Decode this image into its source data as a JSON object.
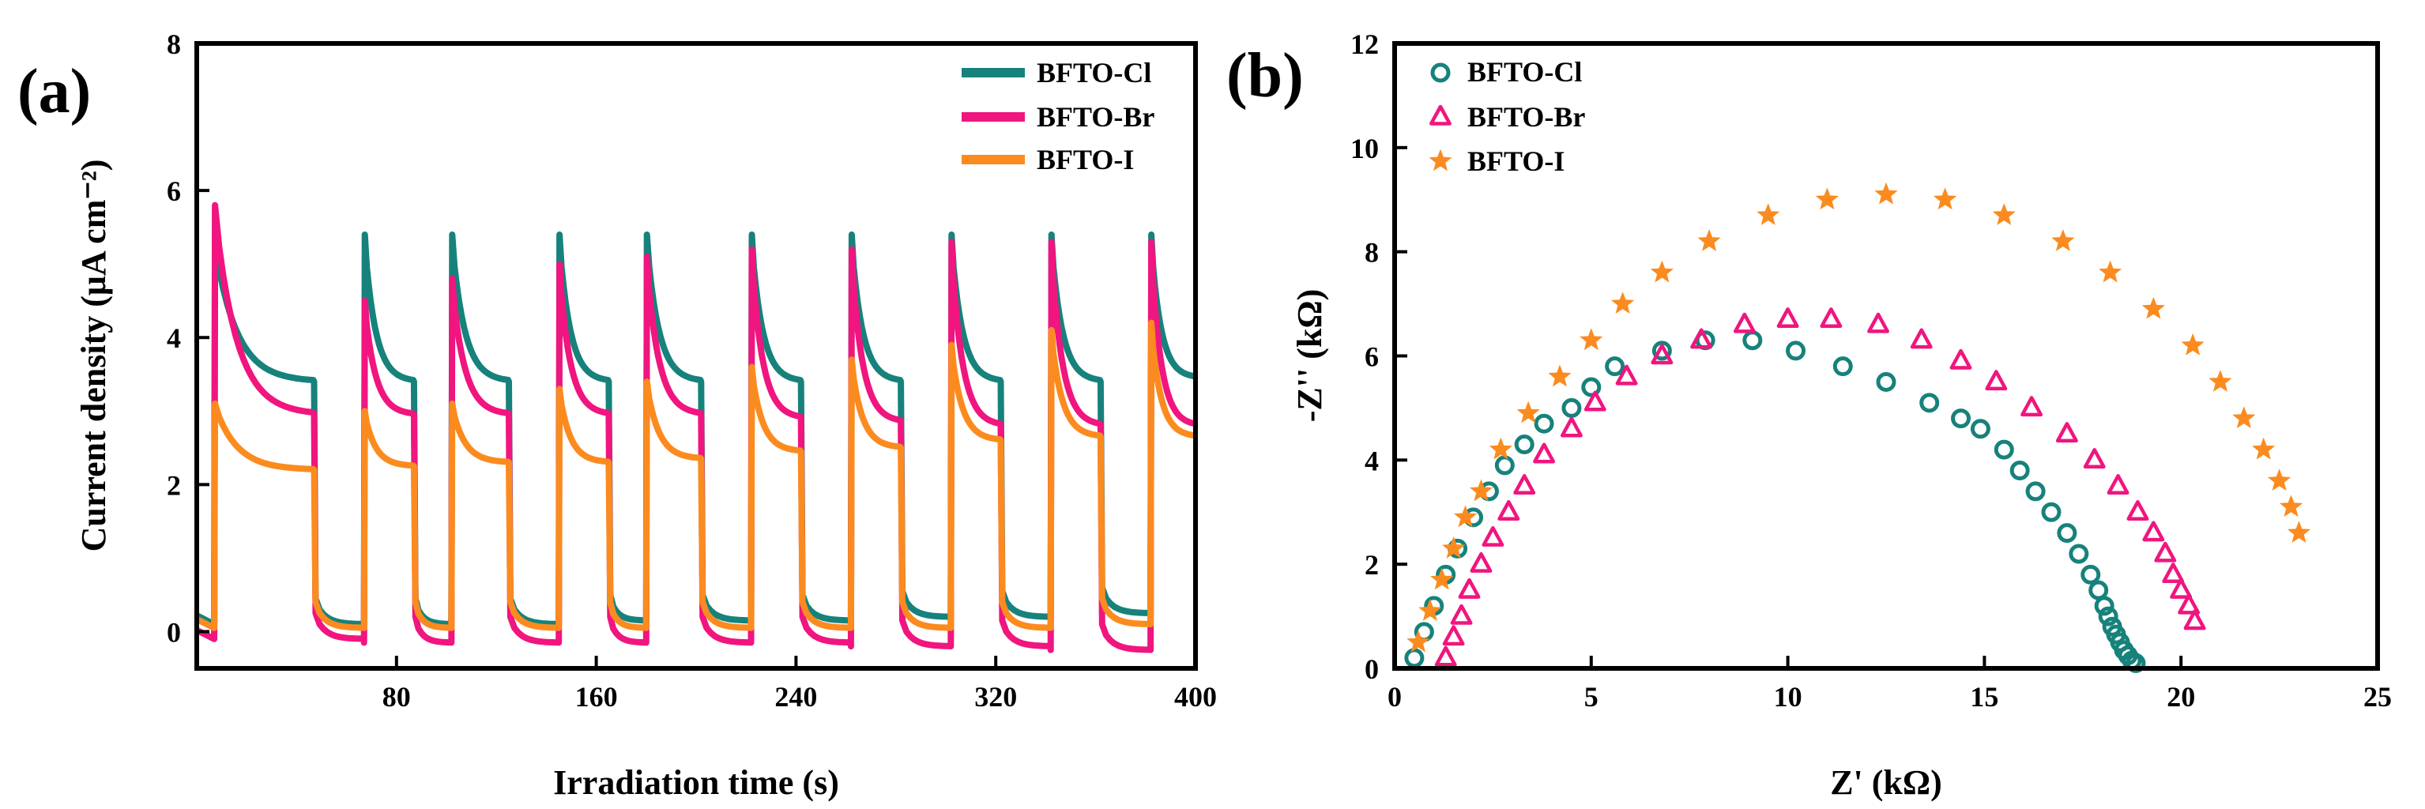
{
  "panel_a_label": "(a)",
  "panel_b_label": "(b)",
  "chart_data": [
    {
      "type": "line",
      "title": "",
      "xlabel": "Irradiation time (s)",
      "ylabel": "Current density (μA cm⁻²)",
      "xlim": [
        0,
        400
      ],
      "ylim": [
        -0.5,
        8
      ],
      "xticks": [
        80,
        160,
        240,
        320,
        400
      ],
      "yticks": [
        0,
        2,
        4,
        6,
        8
      ],
      "light_on_times": [
        7,
        67,
        102,
        145,
        180,
        222,
        262,
        302,
        342,
        382
      ],
      "light_off_times": [
        47,
        87,
        125,
        165,
        202,
        242,
        282,
        322,
        362,
        400
      ],
      "legend_position": "top-right",
      "series": [
        {
          "name": "BFTO-Cl",
          "color": "#16827b",
          "on_peak": [
            5.3,
            5.4,
            5.4,
            5.4,
            5.4,
            5.4,
            5.4,
            5.4,
            5.4,
            5.4
          ],
          "on_plateau": [
            3.4,
            3.4,
            3.4,
            3.4,
            3.4,
            3.4,
            3.4,
            3.4,
            3.4,
            3.45
          ],
          "off_level": [
            0.1,
            0.1,
            0.1,
            0.15,
            0.15,
            0.15,
            0.2,
            0.2,
            0.25,
            0.25
          ]
        },
        {
          "name": "BFTO-Br",
          "color": "#f0157f",
          "on_peak": [
            5.8,
            4.5,
            4.8,
            5.0,
            5.1,
            5.2,
            5.2,
            5.3,
            5.3,
            5.3
          ],
          "on_plateau": [
            2.95,
            2.95,
            2.95,
            2.95,
            2.95,
            2.9,
            2.85,
            2.8,
            2.8,
            2.8
          ],
          "off_level": [
            -0.1,
            -0.15,
            -0.15,
            -0.15,
            -0.15,
            -0.15,
            -0.2,
            -0.2,
            -0.25,
            -0.25
          ]
        },
        {
          "name": "BFTO-I",
          "color": "#fb8b1f",
          "on_peak": [
            3.1,
            3.0,
            3.1,
            3.3,
            3.4,
            3.6,
            3.7,
            3.9,
            4.1,
            4.2
          ],
          "on_plateau": [
            2.2,
            2.25,
            2.3,
            2.3,
            2.35,
            2.45,
            2.5,
            2.6,
            2.65,
            2.65
          ],
          "off_level": [
            0.05,
            0.05,
            0.05,
            0.05,
            0.05,
            0.05,
            0.05,
            0.05,
            0.1,
            0.1
          ]
        }
      ]
    },
    {
      "type": "scatter",
      "title": "",
      "xlabel": "Z' (kΩ)",
      "ylabel": "-Z'' (kΩ)",
      "xlim": [
        0,
        25
      ],
      "ylim": [
        0,
        12
      ],
      "xticks": [
        0,
        5,
        10,
        15,
        20,
        25
      ],
      "yticks": [
        0,
        2,
        4,
        6,
        8,
        10,
        12
      ],
      "legend_position": "top-left",
      "series": [
        {
          "name": "BFTO-Cl",
          "color": "#16827b",
          "marker": "circle",
          "x": [
            0.5,
            0.75,
            1.0,
            1.3,
            1.6,
            2.0,
            2.4,
            2.8,
            3.3,
            3.8,
            4.5,
            5.0,
            5.6,
            6.8,
            7.9,
            9.1,
            10.2,
            11.4,
            12.5,
            13.6,
            14.4,
            14.9,
            15.5,
            15.9,
            16.3,
            16.7,
            17.1,
            17.4,
            17.7,
            17.9,
            18.05,
            18.15,
            18.25,
            18.35,
            18.45,
            18.55,
            18.65,
            18.75,
            18.85
          ],
          "y": [
            0.2,
            0.7,
            1.2,
            1.8,
            2.3,
            2.9,
            3.4,
            3.9,
            4.3,
            4.7,
            5.0,
            5.4,
            5.8,
            6.1,
            6.3,
            6.3,
            6.1,
            5.8,
            5.5,
            5.1,
            4.8,
            4.6,
            4.2,
            3.8,
            3.4,
            3.0,
            2.6,
            2.2,
            1.8,
            1.5,
            1.2,
            1.0,
            0.8,
            0.65,
            0.5,
            0.35,
            0.25,
            0.15,
            0.1
          ]
        },
        {
          "name": "BFTO-Br",
          "color": "#f0157f",
          "marker": "triangle",
          "x": [
            1.3,
            1.5,
            1.7,
            1.9,
            2.2,
            2.5,
            2.9,
            3.3,
            3.8,
            4.5,
            5.1,
            5.9,
            6.8,
            7.8,
            8.9,
            10.0,
            11.1,
            12.3,
            13.4,
            14.4,
            15.3,
            16.2,
            17.1,
            17.8,
            18.4,
            18.9,
            19.3,
            19.6,
            19.8,
            20.0,
            20.2,
            20.35
          ],
          "y": [
            0.2,
            0.6,
            1.0,
            1.5,
            2.0,
            2.5,
            3.0,
            3.5,
            4.1,
            4.6,
            5.1,
            5.6,
            6.0,
            6.3,
            6.6,
            6.7,
            6.7,
            6.6,
            6.3,
            5.9,
            5.5,
            5.0,
            4.5,
            4.0,
            3.5,
            3.0,
            2.6,
            2.2,
            1.8,
            1.5,
            1.2,
            0.9
          ]
        },
        {
          "name": "BFTO-I",
          "color": "#fb8b1f",
          "marker": "star",
          "x": [
            0.6,
            0.9,
            1.2,
            1.5,
            1.8,
            2.2,
            2.7,
            3.4,
            4.2,
            5.0,
            5.8,
            6.8,
            8.0,
            9.5,
            11.0,
            12.5,
            14.0,
            15.5,
            17.0,
            18.2,
            19.3,
            20.3,
            21.0,
            21.6,
            22.1,
            22.5,
            22.8,
            23.0
          ],
          "y": [
            0.5,
            1.1,
            1.7,
            2.3,
            2.9,
            3.4,
            4.2,
            4.9,
            5.6,
            6.3,
            7.0,
            7.6,
            8.2,
            8.7,
            9.0,
            9.1,
            9.0,
            8.7,
            8.2,
            7.6,
            6.9,
            6.2,
            5.5,
            4.8,
            4.2,
            3.6,
            3.1,
            2.6
          ]
        }
      ]
    }
  ]
}
